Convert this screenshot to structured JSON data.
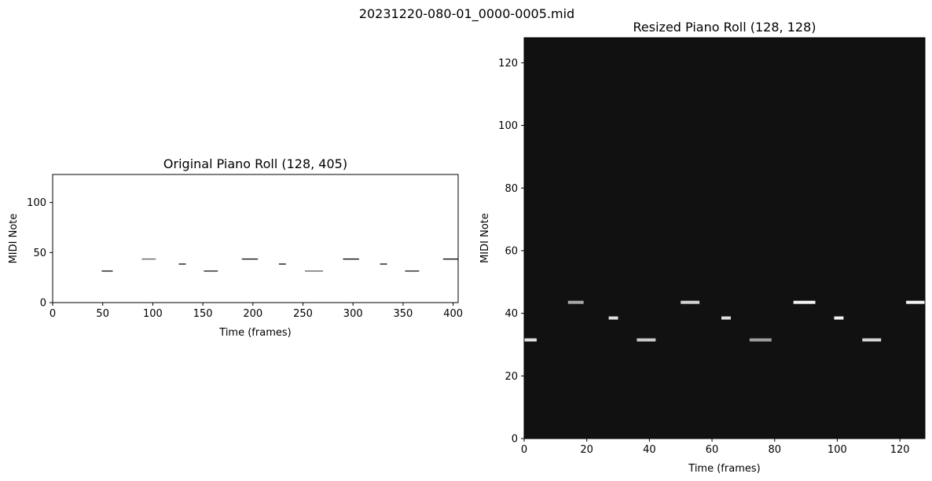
{
  "figure": {
    "suptitle": "20231220-080-01_0000-0005.mid"
  },
  "chart_data": [
    {
      "type": "heatmap",
      "title": "Original Piano Roll (128, 405)",
      "xlabel": "Time (frames)",
      "ylabel": "MIDI Note",
      "xlim": [
        0,
        405
      ],
      "ylim": [
        0,
        128
      ],
      "xticks": [
        0,
        50,
        100,
        150,
        200,
        250,
        300,
        350,
        400
      ],
      "yticks": [
        0,
        50,
        100
      ],
      "background": "#ffffff",
      "notes": [
        {
          "pitch": 31,
          "start": 49,
          "end": 60,
          "intensity": 0.9
        },
        {
          "pitch": 43,
          "start": 89,
          "end": 103,
          "intensity": 0.55
        },
        {
          "pitch": 38,
          "start": 126,
          "end": 133,
          "intensity": 0.9
        },
        {
          "pitch": 31,
          "start": 151,
          "end": 165,
          "intensity": 0.85
        },
        {
          "pitch": 43,
          "start": 189,
          "end": 205,
          "intensity": 0.9
        },
        {
          "pitch": 38,
          "start": 226,
          "end": 233,
          "intensity": 0.9
        },
        {
          "pitch": 31,
          "start": 252,
          "end": 270,
          "intensity": 0.55
        },
        {
          "pitch": 43,
          "start": 290,
          "end": 306,
          "intensity": 0.95
        },
        {
          "pitch": 38,
          "start": 327,
          "end": 334,
          "intensity": 0.9
        },
        {
          "pitch": 31,
          "start": 352,
          "end": 366,
          "intensity": 0.85
        },
        {
          "pitch": 43,
          "start": 390,
          "end": 405,
          "intensity": 0.95
        }
      ]
    },
    {
      "type": "heatmap",
      "title": "Resized Piano Roll (128, 128)",
      "xlabel": "Time (frames)",
      "ylabel": "MIDI Note",
      "xlim": [
        0,
        128
      ],
      "ylim": [
        0,
        128
      ],
      "xticks": [
        0,
        20,
        40,
        60,
        80,
        100,
        120
      ],
      "yticks": [
        0,
        20,
        40,
        60,
        80,
        100,
        120
      ],
      "background": "#111111",
      "notes": [
        {
          "pitch": 31,
          "start": 0,
          "end": 4,
          "intensity": 0.85
        },
        {
          "pitch": 43,
          "start": 14,
          "end": 19,
          "intensity": 0.6
        },
        {
          "pitch": 38,
          "start": 27,
          "end": 30,
          "intensity": 0.85
        },
        {
          "pitch": 31,
          "start": 36,
          "end": 42,
          "intensity": 0.75
        },
        {
          "pitch": 43,
          "start": 50,
          "end": 56,
          "intensity": 0.8
        },
        {
          "pitch": 38,
          "start": 63,
          "end": 66,
          "intensity": 0.85
        },
        {
          "pitch": 31,
          "start": 72,
          "end": 79,
          "intensity": 0.55
        },
        {
          "pitch": 43,
          "start": 86,
          "end": 93,
          "intensity": 0.95
        },
        {
          "pitch": 38,
          "start": 99,
          "end": 102,
          "intensity": 0.95
        },
        {
          "pitch": 31,
          "start": 108,
          "end": 114,
          "intensity": 0.8
        },
        {
          "pitch": 43,
          "start": 122,
          "end": 128,
          "intensity": 0.95
        }
      ]
    }
  ]
}
